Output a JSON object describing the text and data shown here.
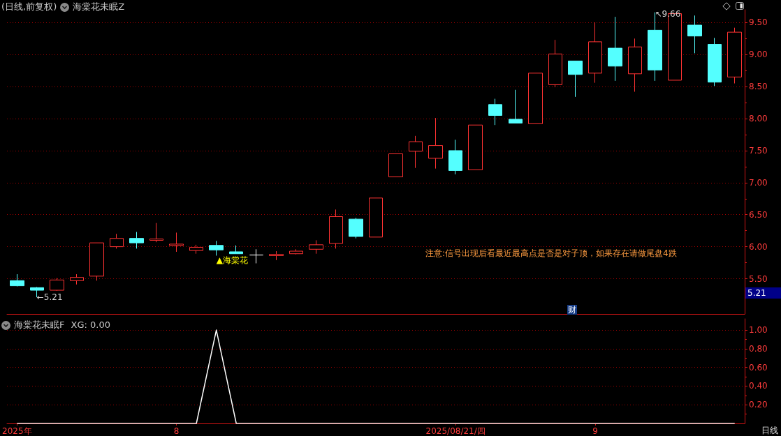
{
  "chart_data": [
    {
      "type": "candlestick",
      "title": "(日线,前复权)",
      "subtitle": "海棠花未眠Z",
      "categories": [
        null,
        null,
        null,
        null,
        null,
        null,
        null,
        null,
        null,
        null,
        null,
        null,
        null,
        null,
        null,
        null,
        null,
        null,
        null,
        null,
        null,
        null,
        null,
        null,
        null,
        null,
        null,
        null,
        null,
        null,
        null,
        null,
        null,
        null,
        null,
        null,
        null
      ],
      "ohlc": [
        [
          5.47,
          5.57,
          5.38,
          5.39
        ],
        [
          5.36,
          5.37,
          5.21,
          5.32
        ],
        [
          5.32,
          5.51,
          5.31,
          5.48
        ],
        [
          5.47,
          5.57,
          5.41,
          5.52
        ],
        [
          5.54,
          6.06,
          5.47,
          6.06
        ],
        [
          6.0,
          6.2,
          5.97,
          6.13
        ],
        [
          6.13,
          6.23,
          5.97,
          6.06
        ],
        [
          6.1,
          6.37,
          6.07,
          6.12
        ],
        [
          6.02,
          6.22,
          5.92,
          6.04
        ],
        [
          5.94,
          6.03,
          5.89,
          5.99
        ],
        [
          6.02,
          6.09,
          5.86,
          5.95
        ],
        [
          5.92,
          6.02,
          5.89,
          5.89
        ],
        [
          5.87,
          5.96,
          5.74,
          5.87
        ],
        [
          5.86,
          5.93,
          5.79,
          5.88
        ],
        [
          5.89,
          5.96,
          5.88,
          5.93
        ],
        [
          5.96,
          6.1,
          5.89,
          6.03
        ],
        [
          6.05,
          6.58,
          5.97,
          6.47
        ],
        [
          6.43,
          6.45,
          6.13,
          6.16
        ],
        [
          6.15,
          6.76,
          6.15,
          6.76
        ],
        [
          7.09,
          7.45,
          7.09,
          7.45
        ],
        [
          7.49,
          7.73,
          7.23,
          7.64
        ],
        [
          7.38,
          8.01,
          7.22,
          7.58
        ],
        [
          7.5,
          7.67,
          7.13,
          7.19
        ],
        [
          7.2,
          7.9,
          7.2,
          7.9
        ],
        [
          8.22,
          8.31,
          7.9,
          8.05
        ],
        [
          7.99,
          8.45,
          7.93,
          7.93
        ],
        [
          7.92,
          8.71,
          7.92,
          8.71
        ],
        [
          8.53,
          9.23,
          8.49,
          9.01
        ],
        [
          8.9,
          8.9,
          8.34,
          8.69
        ],
        [
          8.71,
          9.5,
          8.56,
          9.2
        ],
        [
          9.1,
          9.59,
          8.59,
          8.82
        ],
        [
          8.7,
          9.25,
          8.42,
          9.12
        ],
        [
          9.38,
          9.66,
          8.59,
          8.76
        ],
        [
          8.6,
          9.64,
          8.6,
          9.64
        ],
        [
          9.46,
          9.61,
          9.02,
          9.29
        ],
        [
          9.16,
          9.26,
          8.51,
          8.57
        ],
        [
          8.65,
          9.42,
          8.55,
          9.35
        ]
      ],
      "colors": [
        "#54ffff",
        "#54ffff",
        "#ff3232",
        "#ff3232",
        "#ff3232",
        "#ff3232",
        "#54ffff",
        "#ff3232",
        "#ff3232",
        "#ff3232",
        "#54ffff",
        "#54ffff",
        "#ffffff",
        "#ff3232",
        "#ff3232",
        "#ff3232",
        "#ff3232",
        "#54ffff",
        "#ff3232",
        "#ff3232",
        "#ff3232",
        "#ff3232",
        "#54ffff",
        "#ff3232",
        "#54ffff",
        "#54ffff",
        "#ff3232",
        "#ff3232",
        "#54ffff",
        "#ff3232",
        "#54ffff",
        "#ff3232",
        "#54ffff",
        "#ff3232",
        "#54ffff",
        "#54ffff",
        "#ff3232"
      ],
      "ylim": [
        4.95,
        9.7
      ],
      "yticks": [
        {
          "value": 5.25,
          "label": null
        },
        {
          "value": 5.5,
          "label": "5.50"
        },
        {
          "value": 5.75,
          "label": null
        },
        {
          "value": 6,
          "label": "6.00"
        },
        {
          "value": 6.25,
          "label": null
        },
        {
          "value": 6.5,
          "label": "6.50"
        },
        {
          "value": 6.75,
          "label": null
        },
        {
          "value": 7,
          "label": "7.00"
        },
        {
          "value": 7.25,
          "label": null
        },
        {
          "value": 7.5,
          "label": "7.50"
        },
        {
          "value": 7.75,
          "label": null
        },
        {
          "value": 8,
          "label": "8.00"
        },
        {
          "value": 8.25,
          "label": null
        },
        {
          "value": 8.5,
          "label": "8.50"
        },
        {
          "value": 8.75,
          "label": null
        },
        {
          "value": 9,
          "label": "9.00"
        },
        {
          "value": 9.25,
          "label": null
        },
        {
          "value": 9.5,
          "label": "9.50"
        }
      ],
      "grid": "y",
      "annotations": [
        "注意:信号出现后看最近最高点是否是对子顶，如果存在请做尾盘4跌",
        "←5.21",
        "↖9.66",
        "▲海棠花",
        "财",
        "5.21"
      ]
    },
    {
      "type": "line",
      "title": "海棠花未眠F",
      "categories": [
        "2025年",
        null,
        null,
        null,
        null,
        null,
        null,
        null,
        "8",
        null,
        null,
        null,
        null,
        null,
        null,
        null,
        null,
        null,
        null,
        null,
        null,
        null,
        "2025/08/21/四",
        null,
        null,
        null,
        null,
        null,
        null,
        "9",
        null,
        null,
        null,
        null,
        null,
        null,
        null
      ],
      "values": [
        0,
        0,
        0,
        0,
        0,
        0,
        0,
        0,
        0,
        0,
        1,
        0,
        0,
        0,
        0,
        0,
        0,
        0,
        0,
        0,
        0,
        0,
        0,
        0,
        0,
        0,
        0,
        0,
        0,
        0,
        0,
        0,
        0,
        0,
        0,
        0,
        0
      ],
      "color": "#ffffff",
      "ylim": [
        0,
        1.12
      ],
      "yticks": [
        {
          "value": 0.1,
          "label": null
        },
        {
          "value": 0.2,
          "label": "0.20"
        },
        {
          "value": 0.3,
          "label": null
        },
        {
          "value": 0.4,
          "label": "0.40"
        },
        {
          "value": 0.5,
          "label": null
        },
        {
          "value": 0.6,
          "label": "0.60"
        },
        {
          "value": 0.7,
          "label": null
        },
        {
          "value": 0.8,
          "label": "0.80"
        },
        {
          "value": 0.9,
          "label": null
        },
        {
          "value": 1,
          "label": "1.00"
        }
      ],
      "grid": "y",
      "annotations": [
        "XG: 0.00",
        "日线"
      ]
    }
  ]
}
